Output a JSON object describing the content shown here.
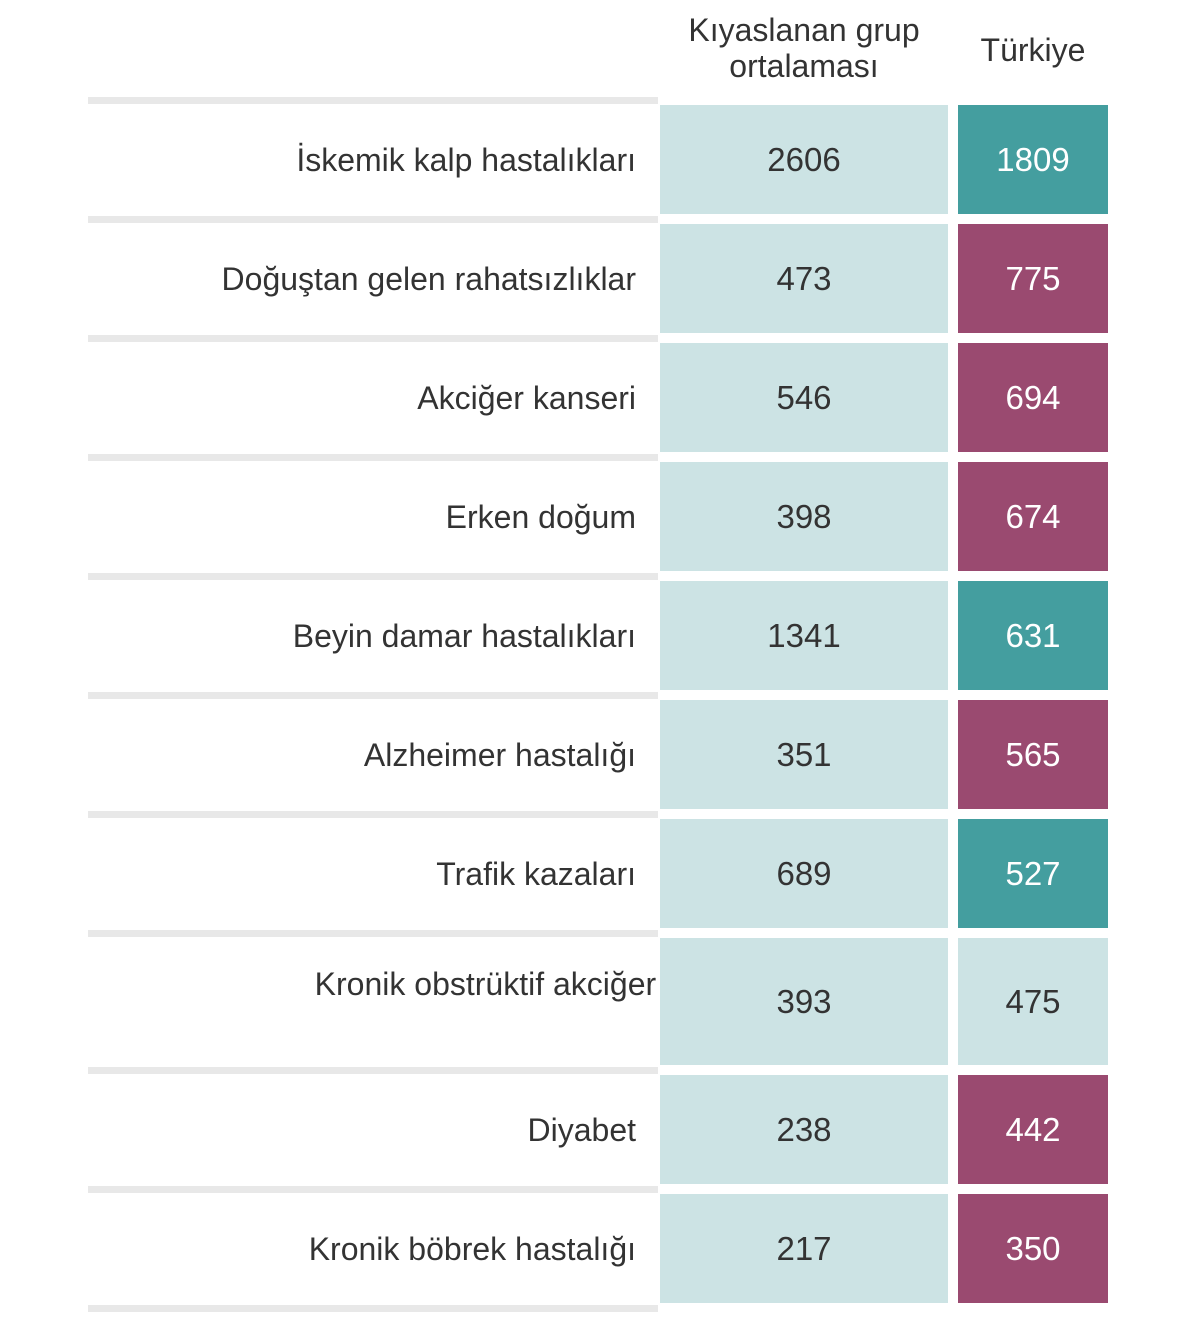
{
  "chart_data": {
    "type": "table",
    "columns": [
      "Kıyaslanan grup ortalaması",
      "Türkiye"
    ],
    "colors": {
      "neutral": "#cce3e4",
      "better": "#449e9f",
      "worse": "#9a4a70",
      "separator": "#e8e8e8"
    },
    "rows": [
      {
        "label": "İskemik kalp hastalıkları",
        "group_avg": "2606",
        "turkey": "1809",
        "status": "better"
      },
      {
        "label": "Doğuştan gelen rahatsızlıklar",
        "group_avg": "473",
        "turkey": "775",
        "status": "worse"
      },
      {
        "label": "Akciğer kanseri",
        "group_avg": "546",
        "turkey": "694",
        "status": "worse"
      },
      {
        "label": "Erken doğum",
        "group_avg": "398",
        "turkey": "674",
        "status": "worse"
      },
      {
        "label": "Beyin damar hastalıkları",
        "group_avg": "1341",
        "turkey": "631",
        "status": "better"
      },
      {
        "label": "Alzheimer hastalığı",
        "group_avg": "351",
        "turkey": "565",
        "status": "worse"
      },
      {
        "label": "Trafik kazaları",
        "group_avg": "689",
        "turkey": "527",
        "status": "better"
      },
      {
        "label": "Kronik obstrüktif akciğer hastalığı (KOAH)",
        "group_avg": "393",
        "turkey": "475",
        "status": "neutral"
      },
      {
        "label": "Diyabet",
        "group_avg": "238",
        "turkey": "442",
        "status": "worse"
      },
      {
        "label": "Kronik böbrek hastalığı",
        "group_avg": "217",
        "turkey": "350",
        "status": "worse"
      }
    ]
  }
}
